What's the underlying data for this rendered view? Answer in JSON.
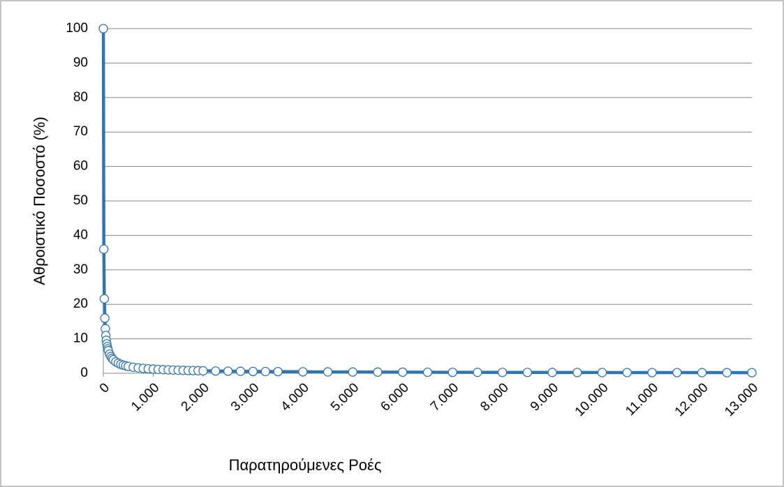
{
  "chart_data": {
    "type": "scatter-line",
    "x_label": "Παρατηρούμενες Ροές",
    "y_label": "Αθροιστικό Ποσοστό (%)",
    "color": "#2e75b6",
    "x": [
      1,
      10,
      20,
      30,
      40,
      50,
      60,
      70,
      80,
      90,
      100,
      125,
      150,
      175,
      200,
      250,
      300,
      350,
      400,
      450,
      500,
      600,
      700,
      800,
      900,
      1000,
      1100,
      1200,
      1300,
      1400,
      1500,
      1600,
      1700,
      1800,
      1900,
      2000,
      2250,
      2500,
      2750,
      3000,
      3250,
      3500,
      4000,
      4500,
      5000,
      5500,
      6000,
      6500,
      7000,
      7500,
      8000,
      8500,
      9000,
      9500,
      10000,
      10500,
      11000,
      11500,
      12000,
      12500,
      13000
    ],
    "values": [
      100,
      36,
      21.6,
      16.0,
      12.9,
      10.96,
      9.58,
      8.55,
      7.74,
      7.09,
      6.57,
      5.57,
      4.87,
      4.34,
      3.93,
      3.34,
      2.92,
      2.6,
      2.36,
      2.16,
      2.0,
      1.75,
      1.56,
      1.41,
      1.29,
      1.2,
      1.12,
      1.05,
      0.99,
      0.94,
      0.89,
      0.85,
      0.81,
      0.78,
      0.75,
      0.72,
      0.66,
      0.61,
      0.57,
      0.53,
      0.5,
      0.48,
      0.43,
      0.39,
      0.37,
      0.34,
      0.32,
      0.3,
      0.28,
      0.27,
      0.26,
      0.25,
      0.24,
      0.23,
      0.22,
      0.21,
      0.2,
      0.2,
      0.19,
      0.19,
      0.18
    ],
    "xlim": [
      0,
      13000
    ],
    "xticks": [
      0,
      {
        "value": 1000,
        "label": "1.000"
      },
      {
        "value": 2000,
        "label": "2.000"
      },
      {
        "value": 3000,
        "label": "3.000"
      },
      {
        "value": 4000,
        "label": "4.000"
      },
      {
        "value": 5000,
        "label": "5.000"
      },
      {
        "value": 6000,
        "label": "6.000"
      },
      {
        "value": 7000,
        "label": "7.000"
      },
      {
        "value": 8000,
        "label": "8.000"
      },
      {
        "value": 9000,
        "label": "9.000"
      },
      {
        "value": 10000,
        "label": "10.000"
      },
      {
        "value": 11000,
        "label": "11.000"
      },
      {
        "value": 12000,
        "label": "12.000"
      },
      {
        "value": 13000,
        "label": "13.000"
      }
    ],
    "ylim": [
      0,
      100
    ],
    "yticks": [
      0,
      10,
      20,
      30,
      40,
      50,
      60,
      70,
      80,
      90,
      100
    ],
    "grid": true
  }
}
